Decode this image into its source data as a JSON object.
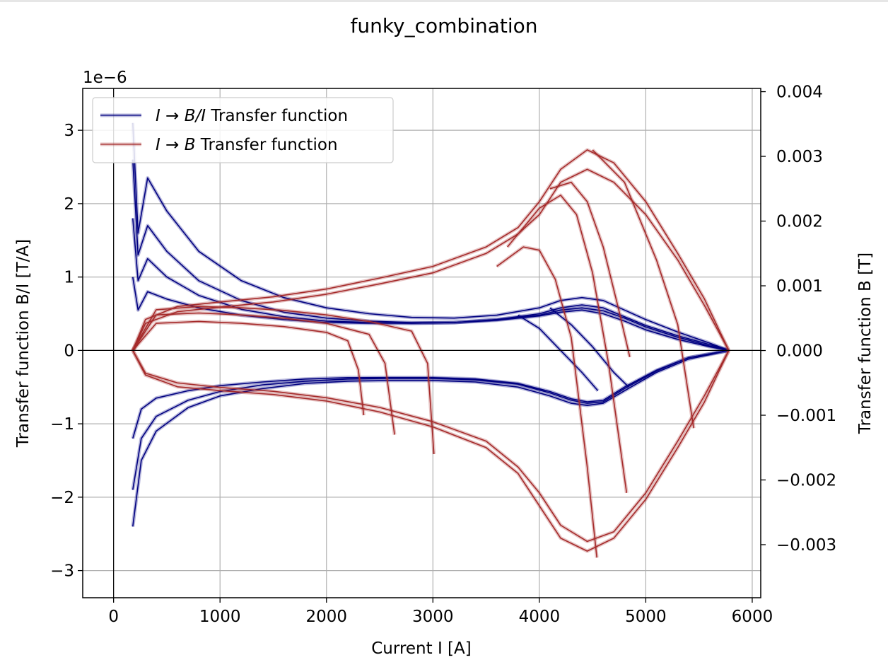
{
  "chart_data": {
    "type": "line",
    "title": "funky_combination",
    "xlabel": "Current I [A]",
    "ylabel_left": "Transfer function B/I [T/A]",
    "ylabel_right": "Transfer function B [T]",
    "left_offset_text": "1e−6",
    "xlim": [
      -290,
      6080
    ],
    "ylim_left": [
      -3.37,
      3.57
    ],
    "ylim_right": [
      -0.00382,
      0.00405
    ],
    "x_ticks": [
      0,
      1000,
      2000,
      3000,
      4000,
      5000,
      6000
    ],
    "x_tick_labels": [
      "0",
      "1000",
      "2000",
      "3000",
      "4000",
      "5000",
      "6000"
    ],
    "y_ticks_left": [
      -3,
      -2,
      -1,
      0,
      1,
      2,
      3
    ],
    "y_tick_labels_left": [
      "−3",
      "−2",
      "−1",
      "0",
      "1",
      "2",
      "3"
    ],
    "y_ticks_right": [
      -0.003,
      -0.002,
      -0.001,
      0.0,
      0.001,
      0.002,
      0.003,
      0.004
    ],
    "y_tick_labels_right": [
      "−0.003",
      "−0.002",
      "−0.001",
      "0.000",
      "0.001",
      "0.002",
      "0.003",
      "0.004"
    ],
    "grid": true,
    "zero_lines": true,
    "legend_position": "upper-left",
    "series": [
      {
        "name": "I → B/I Transfer function",
        "legend_label": {
          "pre": "I",
          "arrow": " → ",
          "var": "B/I",
          "post": " Transfer function"
        },
        "axis": "left",
        "color": "#000080",
        "curves": [
          {
            "x": [
              180,
              230,
              320,
              500,
              800,
              1200,
              1600,
              2000,
              2400,
              2800,
              3200,
              3600,
              4000,
              4200,
              4400,
              4600,
              4800,
              5000,
              5300,
              5600,
              5780
            ],
            "y": [
              3.1,
              1.6,
              2.35,
              1.9,
              1.35,
              0.95,
              0.72,
              0.58,
              0.5,
              0.45,
              0.44,
              0.48,
              0.58,
              0.68,
              0.72,
              0.68,
              0.55,
              0.42,
              0.25,
              0.1,
              0.0
            ]
          },
          {
            "x": [
              180,
              230,
              320,
              500,
              800,
              1200,
              1600,
              2000,
              2400,
              2800,
              3200,
              3600,
              4000,
              4200,
              4400,
              4600,
              4800,
              5000,
              5300,
              5600,
              5780
            ],
            "y": [
              2.6,
              1.3,
              1.7,
              1.35,
              0.95,
              0.68,
              0.52,
              0.44,
              0.4,
              0.38,
              0.38,
              0.42,
              0.5,
              0.58,
              0.62,
              0.58,
              0.46,
              0.34,
              0.2,
              0.08,
              0.0
            ]
          },
          {
            "x": [
              180,
              230,
              320,
              500,
              800,
              1200,
              1600,
              2000,
              2400,
              2800,
              3200,
              3600,
              4000,
              4200,
              4400,
              4600,
              4800,
              5000,
              5300,
              5600,
              5780
            ],
            "y": [
              1.8,
              0.95,
              1.25,
              1.0,
              0.75,
              0.56,
              0.46,
              0.4,
              0.38,
              0.37,
              0.38,
              0.42,
              0.48,
              0.55,
              0.58,
              0.54,
              0.44,
              0.32,
              0.18,
              0.06,
              0.0
            ]
          },
          {
            "x": [
              180,
              230,
              320,
              500,
              800,
              1200,
              1600,
              2000,
              2400,
              2800,
              3200,
              3600,
              4000,
              4200,
              4400,
              4600,
              4800,
              5000,
              5300,
              5600,
              5780
            ],
            "y": [
              1.0,
              0.55,
              0.8,
              0.7,
              0.58,
              0.48,
              0.42,
              0.38,
              0.37,
              0.37,
              0.38,
              0.41,
              0.47,
              0.52,
              0.55,
              0.5,
              0.4,
              0.28,
              0.15,
              0.05,
              0.0
            ]
          },
          {
            "x": [
              180,
              260,
              400,
              700,
              1000,
              1400,
              1800,
              2200,
              2600,
              3000,
              3400,
              3800,
              4100,
              4300,
              4450,
              4600,
              4800,
              5100,
              5400,
              5780
            ],
            "y": [
              -2.4,
              -1.5,
              -1.1,
              -0.78,
              -0.62,
              -0.52,
              -0.45,
              -0.42,
              -0.41,
              -0.41,
              -0.43,
              -0.5,
              -0.62,
              -0.72,
              -0.75,
              -0.72,
              -0.55,
              -0.3,
              -0.12,
              0.0
            ]
          },
          {
            "x": [
              180,
              260,
              400,
              700,
              1000,
              1400,
              1800,
              2200,
              2600,
              3000,
              3400,
              3800,
              4100,
              4300,
              4450,
              4600,
              4800,
              5100,
              5400,
              5780
            ],
            "y": [
              -1.9,
              -1.2,
              -0.9,
              -0.68,
              -0.56,
              -0.47,
              -0.42,
              -0.39,
              -0.38,
              -0.38,
              -0.4,
              -0.46,
              -0.58,
              -0.68,
              -0.72,
              -0.7,
              -0.52,
              -0.28,
              -0.1,
              0.0
            ]
          },
          {
            "x": [
              180,
              260,
              400,
              700,
              1000,
              1400,
              1800,
              2200,
              2600,
              3000,
              3400,
              3800,
              4100,
              4300,
              4450,
              4600,
              4800,
              5100,
              5400,
              5780
            ],
            "y": [
              -1.2,
              -0.8,
              -0.65,
              -0.55,
              -0.48,
              -0.43,
              -0.39,
              -0.37,
              -0.37,
              -0.37,
              -0.39,
              -0.45,
              -0.56,
              -0.66,
              -0.7,
              -0.68,
              -0.5,
              -0.27,
              -0.1,
              0.0
            ]
          },
          {
            "x": [
              3800,
              4000,
              4200,
              4400,
              4550
            ],
            "y": [
              0.48,
              0.3,
              0.0,
              -0.3,
              -0.55
            ]
          },
          {
            "x": [
              4100,
              4300,
              4500,
              4700,
              4840
            ],
            "y": [
              0.58,
              0.35,
              0.05,
              -0.3,
              -0.5
            ]
          }
        ]
      },
      {
        "name": "I → B Transfer function",
        "legend_label": {
          "pre": "I",
          "arrow": " → ",
          "var": "B",
          "post": " Transfer function"
        },
        "axis": "right",
        "color": "#a52a2a",
        "curves": [
          {
            "x": [
              180,
              300,
              600,
              1000,
              1500,
              2000,
              2500,
              3000,
              3500,
              3800,
              4000,
              4200,
              4450,
              4700,
              5000,
              5300,
              5550,
              5780
            ],
            "y": [
              0.0,
              0.00048,
              0.00068,
              0.00075,
              0.00083,
              0.00095,
              0.00112,
              0.0013,
              0.0016,
              0.0019,
              0.0023,
              0.0028,
              0.0031,
              0.0029,
              0.0023,
              0.0015,
              0.0008,
              0.0
            ]
          },
          {
            "x": [
              180,
              300,
              600,
              1000,
              1500,
              2000,
              2500,
              3000,
              3500,
              3800,
              4000,
              4200,
              4450,
              4700,
              5000,
              5300,
              5550,
              5780
            ],
            "y": [
              0.0,
              0.00042,
              0.0006,
              0.00067,
              0.00075,
              0.00087,
              0.00103,
              0.0012,
              0.0015,
              0.0018,
              0.0021,
              0.0026,
              0.0028,
              0.0026,
              0.0021,
              0.0014,
              0.0007,
              0.0
            ]
          },
          {
            "x": [
              180,
              300,
              600,
              1000,
              1500,
              2000,
              2500,
              3000,
              3500,
              3800,
              4000,
              4200,
              4450,
              4700,
              5000,
              5300,
              5550,
              5780
            ],
            "y": [
              0.0,
              -0.00038,
              -0.00056,
              -0.00062,
              -0.00068,
              -0.00078,
              -0.00095,
              -0.00118,
              -0.0015,
              -0.0019,
              -0.0024,
              -0.0029,
              -0.0031,
              -0.0029,
              -0.0023,
              -0.0015,
              -0.0008,
              0.0
            ]
          },
          {
            "x": [
              180,
              300,
              600,
              1000,
              1500,
              2000,
              2500,
              3000,
              3500,
              3800,
              4000,
              4200,
              4450,
              4700,
              5000,
              5300,
              5550,
              5780
            ],
            "y": [
              0.0,
              -0.00035,
              -0.0005,
              -0.00057,
              -0.00063,
              -0.00073,
              -0.00088,
              -0.0011,
              -0.0014,
              -0.0018,
              -0.0022,
              -0.0027,
              -0.00295,
              -0.0028,
              -0.0022,
              -0.0014,
              -0.0007,
              0.0
            ]
          },
          {
            "x": [
              180,
              400,
              800,
              1200,
              1600,
              2000,
              2200,
              2300,
              2350
            ],
            "y": [
              0.0,
              0.00042,
              0.00045,
              0.00042,
              0.00037,
              0.00028,
              0.00015,
              -0.0003,
              -0.001
            ]
          },
          {
            "x": [
              180,
              400,
              800,
              1200,
              1600,
              2000,
              2400,
              2550,
              2640
            ],
            "y": [
              0.0,
              0.00055,
              0.00058,
              0.00055,
              0.0005,
              0.00042,
              0.00025,
              -0.0002,
              -0.0013
            ]
          },
          {
            "x": [
              180,
              400,
              800,
              1200,
              1600,
              2000,
              2400,
              2800,
              2950,
              3010
            ],
            "y": [
              0.0,
              0.00063,
              0.00068,
              0.00066,
              0.00062,
              0.00055,
              0.00045,
              0.0003,
              -0.0002,
              -0.0016
            ]
          },
          {
            "x": [
              3600,
              3850,
              4000,
              4150,
              4300,
              4450,
              4540
            ],
            "y": [
              0.0013,
              0.0016,
              0.00155,
              0.0011,
              0.0002,
              -0.0018,
              -0.0032
            ]
          },
          {
            "x": [
              3700,
              4000,
              4200,
              4350,
              4500,
              4650,
              4820
            ],
            "y": [
              0.0016,
              0.0022,
              0.0024,
              0.0021,
              0.0012,
              -0.0002,
              -0.0022
            ]
          },
          {
            "x": [
              4100,
              4300,
              4450,
              4600,
              4750,
              4850
            ],
            "y": [
              0.0025,
              0.0026,
              0.0023,
              0.0016,
              0.0006,
              -0.0001
            ]
          },
          {
            "x": [
              4500,
              4800,
              5100,
              5300,
              5450
            ],
            "y": [
              0.0031,
              0.0026,
              0.0014,
              0.0004,
              -0.0012
            ]
          }
        ]
      }
    ]
  }
}
